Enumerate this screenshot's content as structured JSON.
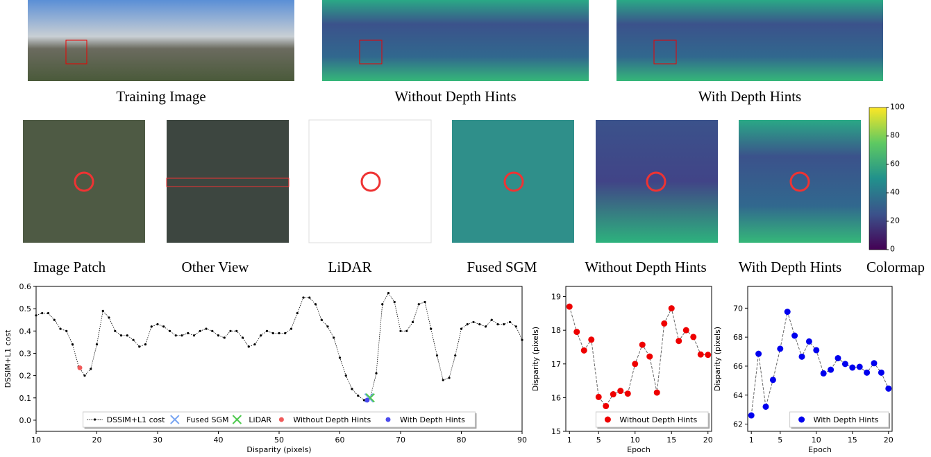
{
  "captions": {
    "top": [
      "Training Image",
      "Without Depth Hints",
      "With Depth Hints"
    ],
    "patches": [
      "Image Patch",
      "Other View",
      "LiDAR",
      "Fused SGM",
      "Without Depth Hints",
      "With Depth Hints",
      "Colormap"
    ]
  },
  "colormap": {
    "ticks": [
      0,
      20,
      40,
      60,
      80,
      100
    ],
    "lim": [
      0,
      100
    ]
  },
  "chart_data": [
    {
      "type": "line",
      "xlabel": "Disparity (pixels)",
      "ylabel": "DSSIM+L1 cost",
      "xlim": [
        10,
        90
      ],
      "ylim": [
        -0.05,
        0.6
      ],
      "xticks": [
        10,
        20,
        30,
        40,
        50,
        60,
        70,
        80,
        90
      ],
      "yticks": [
        {
          "value": 0,
          "label": "0.0"
        },
        0.1,
        0.2,
        0.3,
        0.4,
        0.5,
        0.6
      ],
      "legend": "lower center",
      "series": [
        {
          "name": "DSSIM+L1 cost",
          "color": "#000000",
          "marker": ".",
          "x": [
            10,
            11,
            12,
            13,
            14,
            15,
            16,
            17,
            18,
            19,
            20,
            21,
            22,
            23,
            24,
            25,
            26,
            27,
            28,
            29,
            30,
            31,
            32,
            33,
            34,
            35,
            36,
            37,
            38,
            39,
            40,
            41,
            42,
            43,
            44,
            45,
            46,
            47,
            48,
            49,
            50,
            51,
            52,
            53,
            54,
            55,
            56,
            57,
            58,
            59,
            60,
            61,
            62,
            63,
            64,
            65,
            66,
            67,
            68,
            69,
            70,
            71,
            72,
            73,
            74,
            75,
            76,
            77,
            78,
            79,
            80,
            81,
            82,
            83,
            84,
            85,
            86,
            87,
            88,
            89,
            90
          ],
          "values": [
            0.47,
            0.48,
            0.48,
            0.45,
            0.41,
            0.4,
            0.34,
            0.24,
            0.2,
            0.23,
            0.34,
            0.49,
            0.46,
            0.4,
            0.38,
            0.38,
            0.36,
            0.33,
            0.34,
            0.42,
            0.43,
            0.42,
            0.4,
            0.38,
            0.38,
            0.39,
            0.38,
            0.4,
            0.41,
            0.4,
            0.38,
            0.37,
            0.4,
            0.4,
            0.37,
            0.33,
            0.34,
            0.38,
            0.4,
            0.39,
            0.39,
            0.39,
            0.41,
            0.48,
            0.55,
            0.55,
            0.52,
            0.45,
            0.42,
            0.37,
            0.28,
            0.2,
            0.14,
            0.11,
            0.09,
            0.1,
            0.21,
            0.52,
            0.57,
            0.53,
            0.4,
            0.4,
            0.44,
            0.52,
            0.53,
            0.41,
            0.29,
            0.18,
            0.19,
            0.29,
            0.41,
            0.43,
            0.44,
            0.43,
            0.42,
            0.45,
            0.43,
            0.43,
            0.44,
            0.42,
            0.36
          ]
        },
        {
          "name": "Fused SGM",
          "color": "#7aa6f2",
          "marker": "x",
          "x": [
            64.8
          ],
          "values": [
            0.1
          ]
        },
        {
          "name": "LiDAR",
          "color": "#4fc94f",
          "marker": "x",
          "x": [
            65
          ],
          "values": [
            0.1
          ]
        },
        {
          "name": "Without Depth Hints",
          "color": "#f05a5a",
          "marker": "o",
          "x": [
            17.2
          ],
          "values": [
            0.235
          ]
        },
        {
          "name": "With Depth Hints",
          "color": "#4b4bee",
          "marker": "o",
          "x": [
            64.5
          ],
          "values": [
            0.09
          ]
        }
      ]
    },
    {
      "type": "line",
      "xlabel": "Epoch",
      "ylabel": "Disparity (pixels)",
      "xlim": [
        0.5,
        20.5
      ],
      "ylim": [
        15,
        19.3
      ],
      "xticks": [
        1,
        5,
        10,
        15,
        20
      ],
      "yticks": [
        15,
        16,
        17,
        18,
        19
      ],
      "legend": "lower right",
      "x": [
        1,
        2,
        3,
        4,
        5,
        6,
        7,
        8,
        9,
        10,
        11,
        12,
        13,
        14,
        15,
        16,
        17,
        18,
        19,
        20
      ],
      "series": [
        {
          "name": "Without Depth Hints",
          "color": "#ee0000",
          "marker": "o",
          "values": [
            18.7,
            17.95,
            17.4,
            17.72,
            16.02,
            15.75,
            16.1,
            16.2,
            16.12,
            17.0,
            17.57,
            17.22,
            16.15,
            18.2,
            18.65,
            17.68,
            18.0,
            17.8,
            17.28,
            17.27
          ]
        }
      ]
    },
    {
      "type": "line",
      "xlabel": "Epoch",
      "ylabel": "Disparity (pixels)",
      "xlim": [
        0.5,
        20.5
      ],
      "ylim": [
        61.5,
        71.5
      ],
      "xticks": [
        1,
        5,
        10,
        15,
        20
      ],
      "yticks": [
        62,
        64,
        66,
        68,
        70
      ],
      "legend": "lower right",
      "x": [
        1,
        2,
        3,
        4,
        5,
        6,
        7,
        8,
        9,
        10,
        11,
        12,
        13,
        14,
        15,
        16,
        17,
        18,
        19,
        20
      ],
      "series": [
        {
          "name": "With Depth Hints",
          "color": "#0000ee",
          "marker": "o",
          "values": [
            62.6,
            66.85,
            63.2,
            65.05,
            67.2,
            69.75,
            68.1,
            66.65,
            67.7,
            67.1,
            65.5,
            65.75,
            66.55,
            66.15,
            65.9,
            65.95,
            65.55,
            66.2,
            65.55,
            64.45
          ]
        }
      ]
    }
  ]
}
